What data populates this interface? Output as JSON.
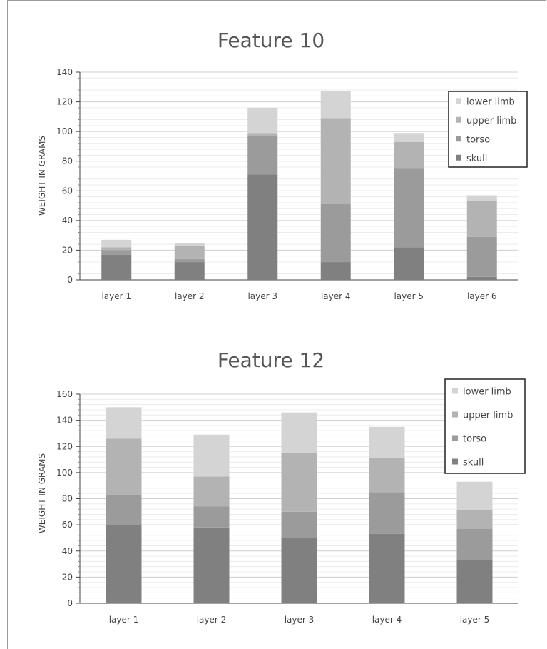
{
  "colors": {
    "skull": "#808080",
    "torso": "#9b9b9b",
    "upper limb": "#b3b3b3",
    "lower limb": "#d4d4d4",
    "grid": "#d9d9d9",
    "axis": "#444444"
  },
  "chart_data": [
    {
      "type": "bar",
      "stacked": true,
      "title": "Feature 10",
      "ylabel": "WEIGHT IN GRAMS",
      "xlabel": "",
      "ylim": [
        0,
        140
      ],
      "yticks": [
        "0",
        "20",
        "40",
        "60",
        "80",
        "100",
        "120",
        "140"
      ],
      "categories": [
        "layer 1",
        "layer 2",
        "layer 3",
        "layer 4",
        "layer 5",
        "layer 6"
      ],
      "series": [
        {
          "name": "skull",
          "values": [
            17,
            12,
            71,
            12,
            22,
            2
          ]
        },
        {
          "name": "torso",
          "values": [
            3,
            2,
            26,
            39,
            53,
            27
          ]
        },
        {
          "name": "upper limb",
          "values": [
            2,
            9,
            2,
            58,
            18,
            24
          ]
        },
        {
          "name": "lower limb",
          "values": [
            5,
            2,
            17,
            18,
            6,
            4
          ]
        }
      ],
      "legend": {
        "position": "top-right",
        "items": [
          "lower limb",
          "upper limb",
          "torso",
          "skull"
        ]
      },
      "grid": true
    },
    {
      "type": "bar",
      "stacked": true,
      "title": "Feature 12",
      "ylabel": "WEIGHT IN GRAMS",
      "xlabel": "",
      "ylim": [
        0,
        160
      ],
      "yticks": [
        "0",
        "20",
        "40",
        "60",
        "80",
        "100",
        "120",
        "140",
        "160"
      ],
      "categories": [
        "layer 1",
        "layer 2",
        "layer 3",
        "layer 4",
        "layer 5"
      ],
      "series": [
        {
          "name": "skull",
          "values": [
            60,
            58,
            50,
            53,
            33
          ]
        },
        {
          "name": "torso",
          "values": [
            23,
            16,
            20,
            32,
            24
          ]
        },
        {
          "name": "upper limb",
          "values": [
            43,
            23,
            45,
            26,
            14
          ]
        },
        {
          "name": "lower limb",
          "values": [
            24,
            32,
            31,
            24,
            22
          ]
        }
      ],
      "legend": {
        "position": "top-right",
        "items": [
          "lower limb",
          "upper limb",
          "torso",
          "skull"
        ]
      },
      "grid": true
    }
  ]
}
